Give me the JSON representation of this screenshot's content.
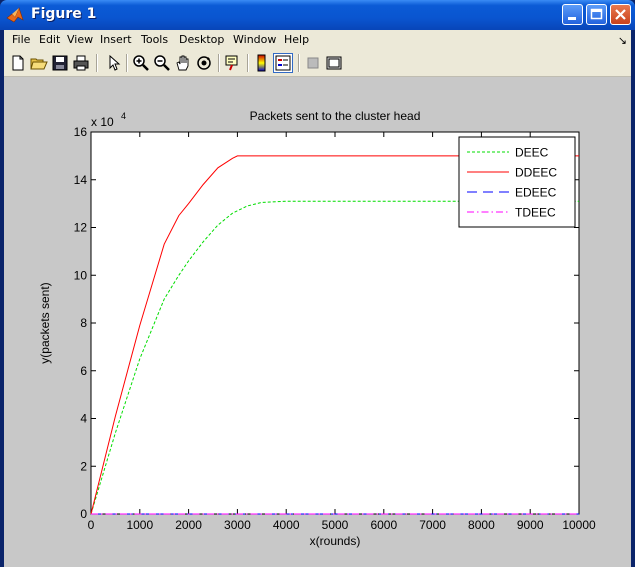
{
  "window": {
    "title": "Figure 1"
  },
  "menu": {
    "file": "File",
    "edit": "Edit",
    "view": "View",
    "insert": "Insert",
    "tools": "Tools",
    "desktop": "Desktop",
    "window": "Window",
    "help": "Help",
    "dock_arrow": "↘"
  },
  "toolbar": {
    "icons": [
      "new-figure-icon",
      "open-file-icon",
      "save-icon",
      "print-icon",
      "pointer-icon",
      "zoom-in-icon",
      "zoom-out-icon",
      "pan-icon",
      "rotate-3d-icon",
      "data-cursor-icon",
      "colorbar-icon",
      "legend-icon",
      "hide-plot-tools-icon",
      "show-plot-tools-icon"
    ]
  },
  "colors": {
    "deec": "#00dd00",
    "ddeec": "#ff0000",
    "edeec": "#0000ff",
    "tdeec": "#ff00ff"
  },
  "chart_data": {
    "type": "line",
    "title": "Packets sent to the cluster head",
    "xlabel": "x(rounds)",
    "ylabel": "y(packets sent)",
    "y_exponent_label": "x 10",
    "y_exponent_power": "4",
    "xlim": [
      0,
      10000
    ],
    "ylim": [
      0,
      16
    ],
    "xticks": [
      "0",
      "1000",
      "2000",
      "3000",
      "4000",
      "5000",
      "6000",
      "7000",
      "8000",
      "9000",
      "10000"
    ],
    "yticks": [
      "0",
      "2",
      "4",
      "6",
      "8",
      "10",
      "12",
      "14",
      "16"
    ],
    "grid": false,
    "legend_position": "top-right",
    "series": [
      {
        "name": "DEEC",
        "style": "dashed-dotted-fine",
        "color": "#00dd00",
        "x": [
          0,
          500,
          1000,
          1500,
          1800,
          2000,
          2300,
          2600,
          2900,
          3200,
          3500,
          4000,
          5000,
          6000,
          7000,
          8000,
          9000,
          10000
        ],
        "y": [
          0,
          3.4,
          6.5,
          9.0,
          10.0,
          10.6,
          11.4,
          12.1,
          12.6,
          12.9,
          13.05,
          13.1,
          13.1,
          13.1,
          13.1,
          13.1,
          13.1,
          13.1
        ]
      },
      {
        "name": "DDEEC",
        "style": "solid",
        "color": "#ff0000",
        "x": [
          0,
          500,
          1000,
          1500,
          1800,
          2000,
          2300,
          2600,
          2900,
          3000,
          3200,
          4000,
          5000,
          6000,
          7000,
          8000,
          9000,
          10000
        ],
        "y": [
          0,
          4.1,
          7.9,
          11.3,
          12.5,
          13.0,
          13.8,
          14.5,
          14.9,
          15.0,
          15.0,
          15.0,
          15.0,
          15.0,
          15.0,
          15.0,
          15.0,
          15.0
        ]
      },
      {
        "name": "EDEEC",
        "style": "dashed",
        "color": "#0000ff",
        "x": [
          0,
          10000
        ],
        "y": [
          0,
          0
        ]
      },
      {
        "name": "TDEEC",
        "style": "dash-dot",
        "color": "#ff00ff",
        "x": [
          0,
          10000
        ],
        "y": [
          0,
          0
        ]
      }
    ]
  }
}
